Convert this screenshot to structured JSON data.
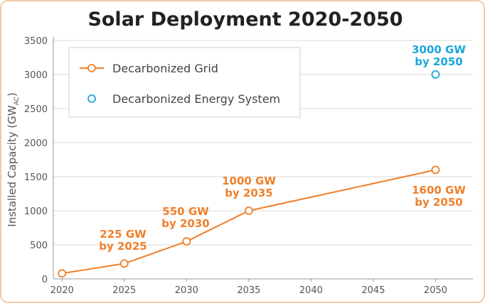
{
  "chart_data": {
    "type": "line",
    "title": "Solar Deployment 2020-2050",
    "y_label": [
      "Installed Capacity (GW",
      "AC",
      ")"
    ],
    "x": [
      2020,
      2025,
      2030,
      2035,
      2050
    ],
    "series": [
      {
        "name": "Decarbonized Grid",
        "color": "#f07f2a",
        "line": true,
        "values": [
          80,
          225,
          550,
          1000,
          1600
        ]
      },
      {
        "name": "Decarbonized Energy System",
        "color": "#1aa6dc",
        "line": false,
        "values": [
          null,
          null,
          null,
          null,
          3000
        ]
      }
    ],
    "xlim": [
      2019.3,
      2053
    ],
    "xticks": [
      2020,
      2025,
      2030,
      2035,
      2040,
      2045,
      2050
    ],
    "ylim": [
      0,
      3500
    ],
    "yticks": [
      0,
      500,
      1000,
      1500,
      2000,
      2500,
      3000,
      3500
    ],
    "grid": true,
    "legend": "upper left",
    "annotations": [
      {
        "lines": [
          "225 GW",
          "by 2025"
        ],
        "color": "#f07f2a"
      },
      {
        "lines": [
          "550 GW",
          "by 2030"
        ],
        "color": "#f07f2a"
      },
      {
        "lines": [
          "1000 GW",
          "by 2035"
        ],
        "color": "#f07f2a"
      },
      {
        "lines": [
          "1600 GW",
          "by 2050"
        ],
        "color": "#f07f2a"
      },
      {
        "lines": [
          "3000 GW",
          "by 2050"
        ],
        "color": "#1aa6dc"
      }
    ]
  }
}
